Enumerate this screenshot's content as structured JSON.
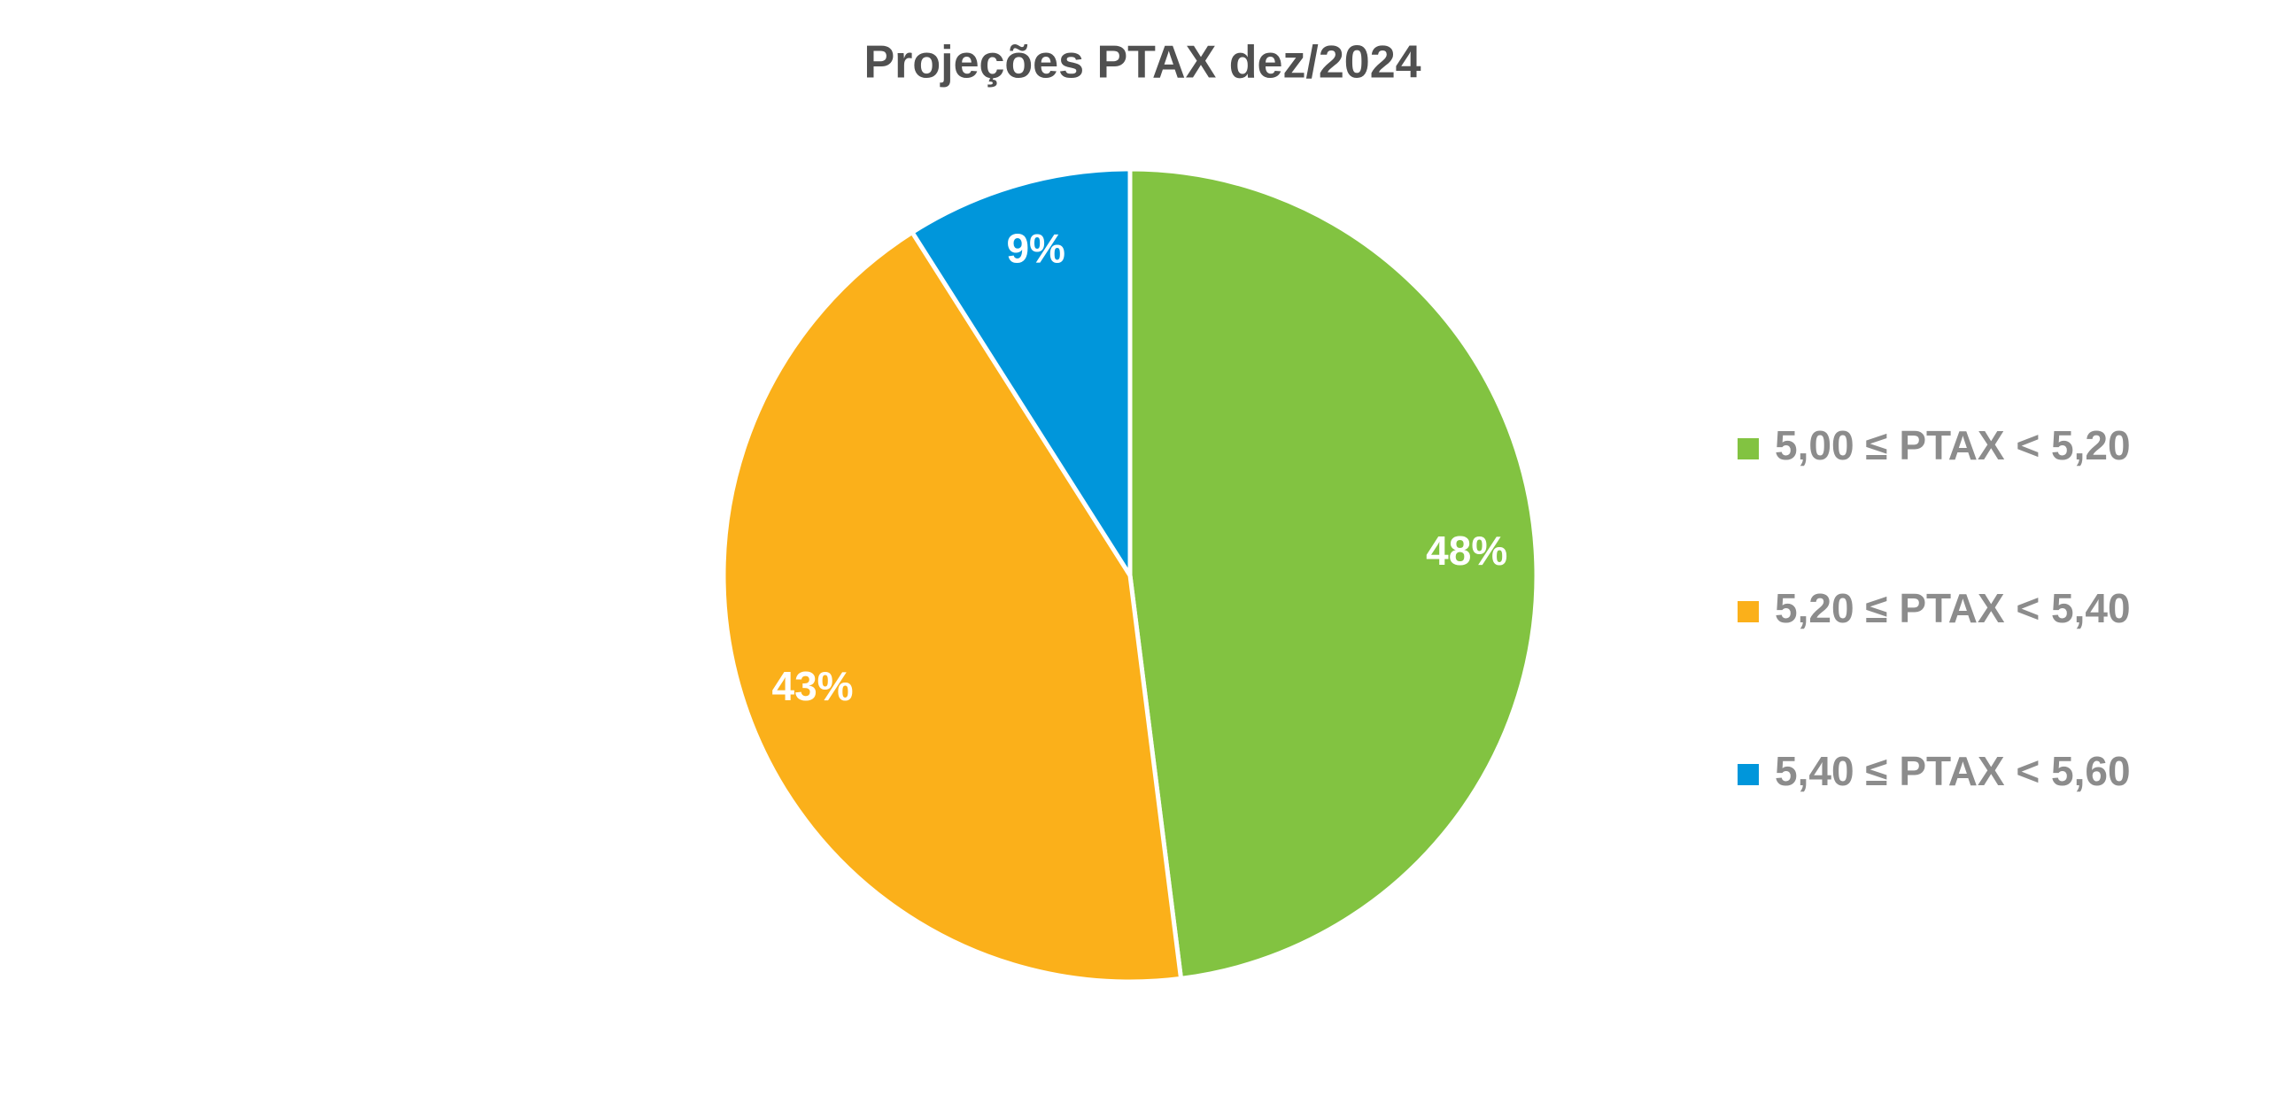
{
  "chart_data": {
    "type": "pie",
    "title": "Projeções PTAX dez/2024",
    "categories": [
      "5,00 ≤ PTAX < 5,20",
      "5,20 ≤ PTAX < 5,40",
      "5,40 ≤ PTAX < 5,60"
    ],
    "values": [
      48,
      43,
      9
    ],
    "value_labels": [
      "48%",
      "43%",
      "9%"
    ],
    "colors": [
      "#82c341",
      "#fbb01a",
      "#0096db"
    ],
    "legend": "right"
  }
}
